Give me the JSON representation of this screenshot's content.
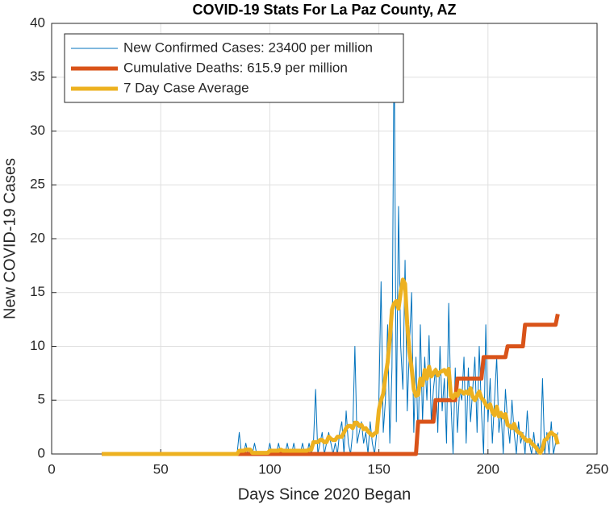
{
  "chart_data": {
    "type": "line",
    "title": "COVID-19 Stats For La Paz County, AZ",
    "x_label": "Days Since 2020 Began",
    "y_label": "New COVID-19 Cases",
    "xlim": [
      0,
      250
    ],
    "xticks": [
      0,
      50,
      100,
      150,
      200,
      250
    ],
    "ylim": [
      0,
      40
    ],
    "yticks": [
      0,
      5,
      10,
      15,
      20,
      25,
      30,
      35,
      40
    ],
    "grid": true,
    "legend_position": "upper-left",
    "x": [
      23,
      24,
      25,
      26,
      27,
      28,
      29,
      30,
      31,
      32,
      33,
      34,
      35,
      36,
      37,
      38,
      39,
      40,
      41,
      42,
      43,
      44,
      45,
      46,
      47,
      48,
      49,
      50,
      51,
      52,
      53,
      54,
      55,
      56,
      57,
      58,
      59,
      60,
      61,
      62,
      63,
      64,
      65,
      66,
      67,
      68,
      69,
      70,
      71,
      72,
      73,
      74,
      75,
      76,
      77,
      78,
      79,
      80,
      81,
      82,
      83,
      84,
      85,
      86,
      87,
      88,
      89,
      90,
      91,
      92,
      93,
      94,
      95,
      96,
      97,
      98,
      99,
      100,
      101,
      102,
      103,
      104,
      105,
      106,
      107,
      108,
      109,
      110,
      111,
      112,
      113,
      114,
      115,
      116,
      117,
      118,
      119,
      120,
      121,
      122,
      123,
      124,
      125,
      126,
      127,
      128,
      129,
      130,
      131,
      132,
      133,
      134,
      135,
      136,
      137,
      138,
      139,
      140,
      141,
      142,
      143,
      144,
      145,
      146,
      147,
      148,
      149,
      150,
      151,
      152,
      153,
      154,
      155,
      156,
      157,
      158,
      159,
      160,
      161,
      162,
      163,
      164,
      165,
      166,
      167,
      168,
      169,
      170,
      171,
      172,
      173,
      174,
      175,
      176,
      177,
      178,
      179,
      180,
      181,
      182,
      183,
      184,
      185,
      186,
      187,
      188,
      189,
      190,
      191,
      192,
      193,
      194,
      195,
      196,
      197,
      198,
      199,
      200,
      201,
      202,
      203,
      204,
      205,
      206,
      207,
      208,
      209,
      210,
      211,
      212,
      213,
      214,
      215,
      216,
      217,
      218,
      219,
      220,
      221,
      222,
      223,
      224,
      225,
      226,
      227,
      228,
      229,
      230,
      231,
      232
    ],
    "series": [
      {
        "name": "New Confirmed Cases: 23400 per million",
        "color": "#0072BD",
        "width": 1,
        "values": [
          0,
          0,
          0,
          0,
          0,
          0,
          0,
          0,
          0,
          0,
          0,
          0,
          0,
          0,
          0,
          0,
          0,
          0,
          0,
          0,
          0,
          0,
          0,
          0,
          0,
          0,
          0,
          0,
          0,
          0,
          0,
          0,
          0,
          0,
          0,
          0,
          0,
          0,
          0,
          0,
          0,
          0,
          0,
          0,
          0,
          0,
          0,
          0,
          0,
          0,
          0,
          0,
          0,
          0,
          0,
          0,
          0,
          0,
          0,
          0,
          0,
          0,
          0,
          2,
          0,
          0,
          1,
          0,
          0,
          0,
          1,
          0,
          0,
          0,
          0,
          0,
          0,
          1,
          0,
          0,
          0,
          1,
          0,
          0,
          0,
          1,
          0,
          0,
          1,
          0,
          0,
          0,
          1,
          0,
          0,
          1,
          0,
          1,
          6,
          0,
          1,
          2,
          0,
          1,
          2,
          1,
          0,
          1,
          0,
          2,
          3,
          0,
          4,
          1,
          0,
          2,
          10,
          1,
          2,
          3,
          1,
          2,
          0,
          3,
          1,
          0,
          2,
          5,
          16,
          2,
          5,
          12,
          1,
          8,
          39,
          3,
          23,
          10,
          6,
          18,
          4,
          10,
          15,
          2,
          9,
          1,
          12,
          3,
          9,
          5,
          11,
          3,
          6,
          8,
          2,
          10,
          4,
          7,
          1,
          14,
          5,
          0,
          8,
          2,
          6,
          5,
          9,
          1,
          8,
          3,
          6,
          9,
          2,
          10,
          4,
          0,
          12,
          3,
          7,
          1,
          5,
          9,
          2,
          4,
          0,
          6,
          3,
          1,
          5,
          2,
          0,
          3,
          1,
          2,
          0,
          4,
          1,
          0,
          2,
          0,
          1,
          0,
          7,
          0,
          2,
          0,
          3,
          0,
          1,
          2
        ]
      },
      {
        "name": "Cumulative Deaths: 615.9 per million",
        "color": "#D95319",
        "width": 5,
        "values": [
          0,
          0,
          0,
          0,
          0,
          0,
          0,
          0,
          0,
          0,
          0,
          0,
          0,
          0,
          0,
          0,
          0,
          0,
          0,
          0,
          0,
          0,
          0,
          0,
          0,
          0,
          0,
          0,
          0,
          0,
          0,
          0,
          0,
          0,
          0,
          0,
          0,
          0,
          0,
          0,
          0,
          0,
          0,
          0,
          0,
          0,
          0,
          0,
          0,
          0,
          0,
          0,
          0,
          0,
          0,
          0,
          0,
          0,
          0,
          0,
          0,
          0,
          0,
          0,
          0,
          0,
          0,
          0,
          0,
          0,
          0,
          0,
          0,
          0,
          0,
          0,
          0,
          0,
          0,
          0,
          0,
          0,
          0,
          0,
          0,
          0,
          0,
          0,
          0,
          0,
          0,
          0,
          0,
          0,
          0,
          0,
          0,
          0,
          0,
          0,
          0,
          0,
          0,
          0,
          0,
          0,
          0,
          0,
          0,
          0,
          0,
          0,
          0,
          0,
          0,
          0,
          0,
          0,
          0,
          0,
          0,
          0,
          0,
          0,
          0,
          0,
          0,
          0,
          0,
          0,
          0,
          0,
          0,
          0,
          0,
          0,
          0,
          0,
          0,
          0,
          0,
          0,
          0,
          0,
          0,
          3,
          3,
          3,
          3,
          3,
          3,
          3,
          3,
          5,
          5,
          5,
          5,
          5,
          5,
          5,
          5,
          5,
          5,
          7,
          7,
          7,
          7,
          7,
          7,
          7,
          7,
          7,
          7,
          7,
          7,
          9,
          9,
          9,
          9,
          9,
          9,
          9,
          9,
          9,
          9,
          9,
          10,
          10,
          10,
          10,
          10,
          10,
          10,
          10,
          12,
          12,
          12,
          12,
          12,
          12,
          12,
          12,
          12,
          12,
          12,
          12,
          12,
          12,
          12,
          13
        ]
      },
      {
        "name": "7 Day Case Average",
        "color": "#EDB120",
        "width": 5,
        "values": [
          0,
          0,
          0,
          0,
          0,
          0,
          0,
          0,
          0,
          0,
          0,
          0,
          0,
          0,
          0,
          0,
          0,
          0,
          0,
          0,
          0,
          0,
          0,
          0,
          0,
          0,
          0,
          0,
          0,
          0,
          0,
          0,
          0,
          0,
          0,
          0,
          0,
          0,
          0,
          0,
          0,
          0,
          0,
          0,
          0,
          0,
          0,
          0,
          0,
          0,
          0,
          0,
          0,
          0,
          0,
          0,
          0,
          0,
          0,
          0,
          0,
          0,
          0,
          0.3,
          0.3,
          0.3,
          0.4,
          0.4,
          0.4,
          0.1,
          0.1,
          0.1,
          0.1,
          0.1,
          0.1,
          0.1,
          0.1,
          0.3,
          0.3,
          0.3,
          0.3,
          0.3,
          0.4,
          0.3,
          0.3,
          0.3,
          0.3,
          0.3,
          0.3,
          0.3,
          0.3,
          0.3,
          0.3,
          0.3,
          0.3,
          0.4,
          0.4,
          1.1,
          1.1,
          1.1,
          1.3,
          1.3,
          1.1,
          1.1,
          1.6,
          1.4,
          1.3,
          1.3,
          1.6,
          1.6,
          1.6,
          2,
          2.4,
          2.6,
          2.6,
          2.4,
          2.9,
          2.9,
          2.6,
          2.7,
          2.3,
          2.4,
          2.1,
          1.9,
          1.7,
          1.9,
          2,
          4.1,
          5,
          5.6,
          7.2,
          8.5,
          10.7,
          13.4,
          14,
          14.2,
          13.5,
          15,
          16.2,
          15.8,
          12,
          9.5,
          8,
          6,
          5.4,
          5.5,
          7,
          6.4,
          7.8,
          7,
          8.1,
          7.2,
          7.5,
          7.8,
          7.3,
          7.6,
          7.7,
          7.8,
          7.4,
          7.9,
          5.4,
          5.2,
          5.6,
          5.4,
          5.9,
          5.8,
          5.6,
          5.8,
          5.6,
          6.1,
          5.3,
          5,
          5.4,
          5.8,
          5.2,
          5,
          4.6,
          4.3,
          4.6,
          3.9,
          3.6,
          4.4,
          3.5,
          3.8,
          3.4,
          3.7,
          2.7,
          2.6,
          2.4,
          2.8,
          2.2,
          2,
          1.9,
          1.6,
          1.4,
          1.2,
          1.3,
          1,
          0.8,
          0.6,
          0.3,
          0.1,
          0.5,
          1.3,
          1.4,
          1.8,
          2,
          1.8,
          1.7,
          0.9
        ]
      }
    ]
  }
}
